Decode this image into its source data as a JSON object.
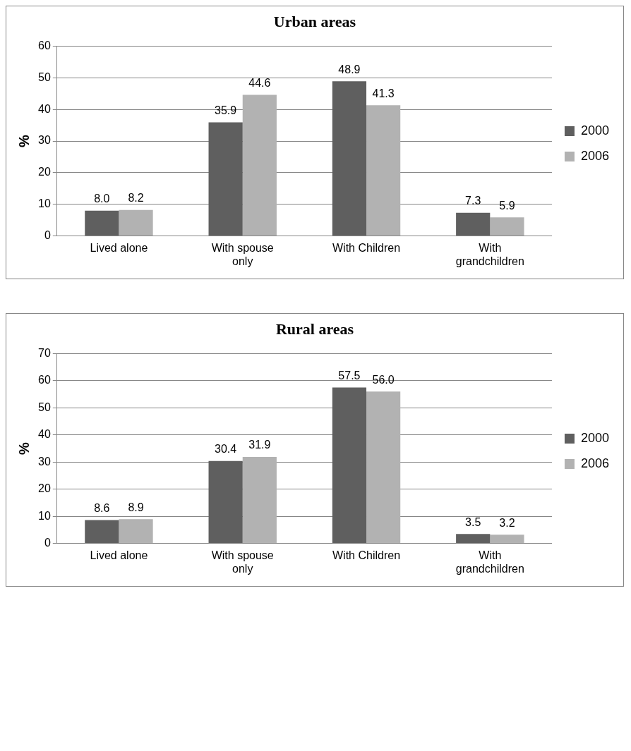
{
  "chart_data": [
    {
      "type": "bar",
      "title": "Urban areas",
      "ylabel": "%",
      "categories": [
        "Lived alone",
        "With spouse only",
        "With Children",
        "With grandchildren"
      ],
      "series": [
        {
          "name": "2000",
          "color": "#5f5f5f",
          "values": [
            8.0,
            35.9,
            48.9,
            7.3
          ],
          "value_labels": [
            "8.0",
            "35.9",
            "48.9",
            "7.3"
          ]
        },
        {
          "name": "2006",
          "color": "#b2b2b2",
          "values": [
            8.2,
            44.6,
            41.3,
            5.9
          ],
          "value_labels": [
            "8.2",
            "44.6",
            "41.3",
            "5.9"
          ]
        }
      ],
      "ylim": [
        0,
        60
      ],
      "yticks": [
        0,
        10,
        20,
        30,
        40,
        50,
        60
      ],
      "grid": "y",
      "legend": "right"
    },
    {
      "type": "bar",
      "title": "Rural areas",
      "ylabel": "%",
      "categories": [
        "Lived alone",
        "With spouse only",
        "With Children",
        "With grandchildren"
      ],
      "series": [
        {
          "name": "2000",
          "color": "#5f5f5f",
          "values": [
            8.6,
            30.4,
            57.5,
            3.5
          ],
          "value_labels": [
            "8.6",
            "30.4",
            "57.5",
            "3.5"
          ]
        },
        {
          "name": "2006",
          "color": "#b2b2b2",
          "values": [
            8.9,
            31.9,
            56.0,
            3.2
          ],
          "value_labels": [
            "8.9",
            "31.9",
            "56.0",
            "3.2"
          ]
        }
      ],
      "ylim": [
        0,
        70
      ],
      "yticks": [
        0,
        10,
        20,
        30,
        40,
        50,
        60,
        70
      ],
      "grid": "y",
      "legend": "right"
    }
  ]
}
